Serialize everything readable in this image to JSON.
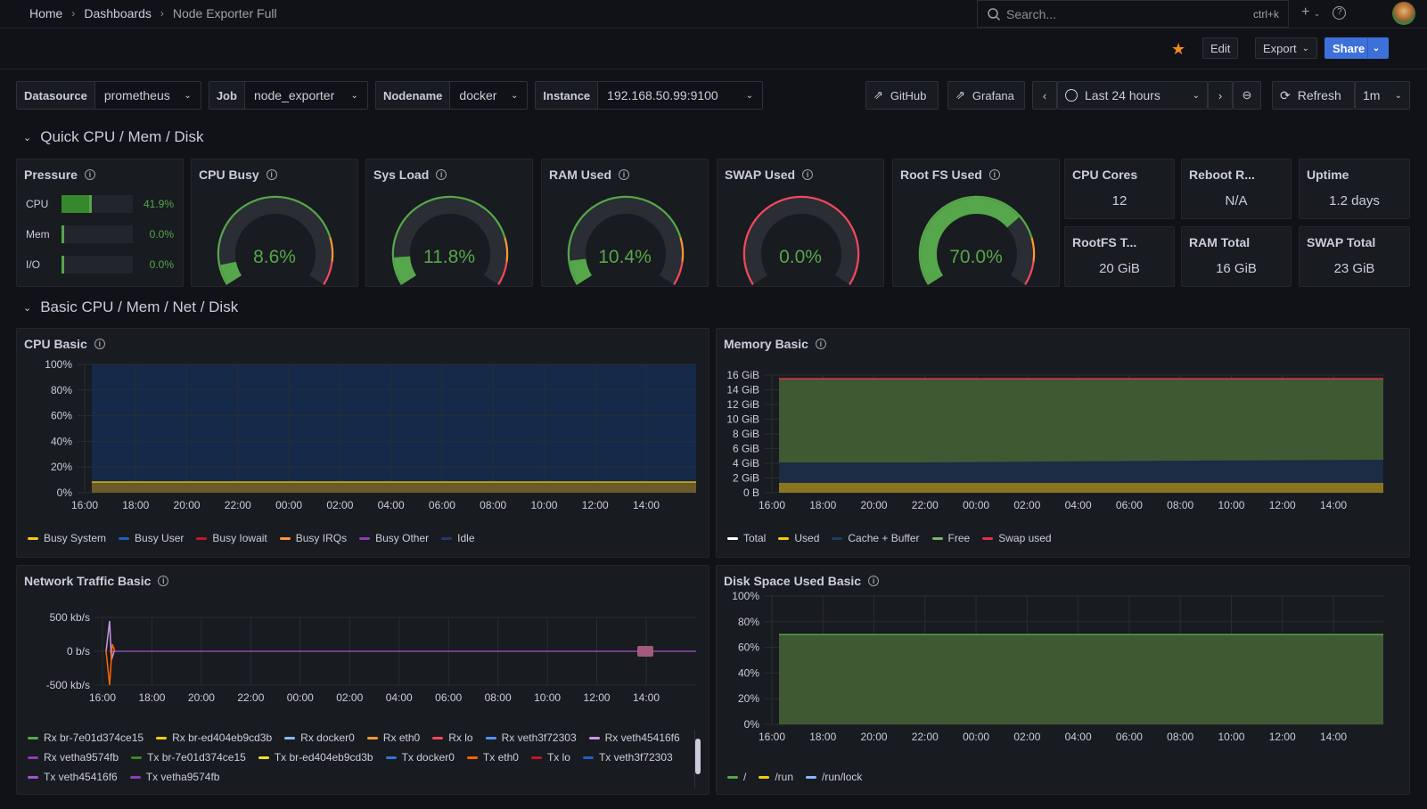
{
  "breadcrumb": {
    "home": "Home",
    "dashboards": "Dashboards",
    "current": "Node Exporter Full"
  },
  "search": {
    "placeholder": "Search...",
    "shortcut": "ctrl+k"
  },
  "toolbar": {
    "edit": "Edit",
    "export": "Export",
    "share": "Share"
  },
  "variables": [
    {
      "label": "Datasource",
      "value": "prometheus"
    },
    {
      "label": "Job",
      "value": "node_exporter"
    },
    {
      "label": "Nodename",
      "value": "docker"
    },
    {
      "label": "Instance",
      "value": "192.168.50.99:9100"
    }
  ],
  "links": {
    "github": "GitHub",
    "grafana": "Grafana"
  },
  "time": {
    "range": "Last 24 hours",
    "refresh": "Refresh",
    "interval": "1m"
  },
  "rows": {
    "quick": "Quick CPU / Mem / Disk",
    "basic": "Basic CPU / Mem / Net / Disk"
  },
  "pressure": {
    "title": "Pressure",
    "items": [
      {
        "label": "CPU",
        "value": "41.9%",
        "fraction": 0.419
      },
      {
        "label": "Mem",
        "value": "0.0%",
        "fraction": 0.0
      },
      {
        "label": "I/O",
        "value": "0.0%",
        "fraction": 0.0
      }
    ]
  },
  "gauges": [
    {
      "title": "CPU Busy",
      "value": "8.6%",
      "fraction": 0.086
    },
    {
      "title": "Sys Load",
      "value": "11.8%",
      "fraction": 0.118
    },
    {
      "title": "RAM Used",
      "value": "10.4%",
      "fraction": 0.104
    },
    {
      "title": "SWAP Used",
      "value": "0.0%",
      "fraction": 0.0
    },
    {
      "title": "Root FS Used",
      "value": "70.0%",
      "fraction": 0.7
    }
  ],
  "stats": [
    {
      "title": "CPU Cores",
      "value": "12"
    },
    {
      "title": "Reboot R...",
      "value": "N/A"
    },
    {
      "title": "Uptime",
      "value": "1.2 days"
    },
    {
      "title": "RootFS T...",
      "value": "20 GiB"
    },
    {
      "title": "RAM Total",
      "value": "16 GiB"
    },
    {
      "title": "SWAP Total",
      "value": "23 GiB"
    }
  ],
  "colors": {
    "green": "#56a64b",
    "yellow": "#f2cc0c",
    "blue": "#5794f2",
    "red": "#e02f44",
    "orange": "#ff9830",
    "purple": "#b877d9",
    "dark_blue": "#1f3c63"
  },
  "x_ticks": [
    "16:00",
    "18:00",
    "20:00",
    "22:00",
    "00:00",
    "02:00",
    "04:00",
    "06:00",
    "08:00",
    "10:00",
    "12:00",
    "14:00"
  ],
  "cpu_basic": {
    "title": "CPU Basic",
    "y_ticks": [
      "100%",
      "80%",
      "60%",
      "40%",
      "20%",
      "0%"
    ],
    "legend": [
      {
        "name": "Busy System",
        "color": "#f2cc0c"
      },
      {
        "name": "Busy User",
        "color": "#1f60c4"
      },
      {
        "name": "Busy Iowait",
        "color": "#c4162a"
      },
      {
        "name": "Busy IRQs",
        "color": "#ff9830"
      },
      {
        "name": "Busy Other",
        "color": "#8f3bb8"
      },
      {
        "name": "Idle",
        "color": "#1f3c63"
      }
    ]
  },
  "memory_basic": {
    "title": "Memory Basic",
    "y_ticks": [
      "16 GiB",
      "14 GiB",
      "12 GiB",
      "10 GiB",
      "8 GiB",
      "6 GiB",
      "4 GiB",
      "2 GiB",
      "0 B"
    ],
    "legend": [
      {
        "name": "Total",
        "color": "#ffffff"
      },
      {
        "name": "Used",
        "color": "#f2cc0c"
      },
      {
        "name": "Cache + Buffer",
        "color": "#1f3c63"
      },
      {
        "name": "Free",
        "color": "#7eb26d"
      },
      {
        "name": "Swap used",
        "color": "#e02f44"
      }
    ]
  },
  "network_basic": {
    "title": "Network Traffic Basic",
    "y_ticks": [
      "500 kb/s",
      "0 b/s",
      "-500 kb/s"
    ],
    "legend": [
      {
        "name": "Rx br-7e01d374ce15",
        "color": "#56a64b"
      },
      {
        "name": "Rx br-ed404eb9cd3b",
        "color": "#f2cc0c"
      },
      {
        "name": "Rx docker0",
        "color": "#8ab8ff"
      },
      {
        "name": "Rx eth0",
        "color": "#ff9830"
      },
      {
        "name": "Rx lo",
        "color": "#f2495c"
      },
      {
        "name": "Rx veth3f72303",
        "color": "#5794f2"
      },
      {
        "name": "Rx veth45416f6",
        "color": "#ca95e5"
      },
      {
        "name": "Rx vetha9574fb",
        "color": "#8f3bb8"
      },
      {
        "name": "Tx br-7e01d374ce15",
        "color": "#37872d"
      },
      {
        "name": "Tx br-ed404eb9cd3b",
        "color": "#fade2a"
      },
      {
        "name": "Tx docker0",
        "color": "#3274d9"
      },
      {
        "name": "Tx eth0",
        "color": "#fa6400"
      },
      {
        "name": "Tx lo",
        "color": "#c4162a"
      },
      {
        "name": "Tx veth3f72303",
        "color": "#1f60c4"
      },
      {
        "name": "Tx veth45416f6",
        "color": "#a352cc"
      },
      {
        "name": "Tx vetha9574fb",
        "color": "#8f3bb8"
      }
    ]
  },
  "disk_basic": {
    "title": "Disk Space Used Basic",
    "y_ticks": [
      "100%",
      "80%",
      "60%",
      "40%",
      "20%",
      "0%"
    ],
    "legend": [
      {
        "name": "/",
        "color": "#56a64b"
      },
      {
        "name": "/run",
        "color": "#f2cc0c"
      },
      {
        "name": "/run/lock",
        "color": "#8ab8ff"
      }
    ]
  }
}
